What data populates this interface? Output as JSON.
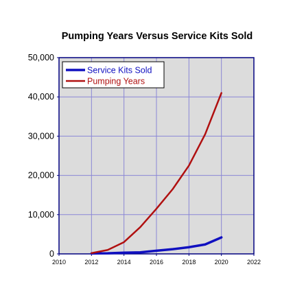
{
  "chart_data": {
    "type": "line",
    "title": "Pumping Years Versus Service Kits Sold",
    "xlabel": "",
    "ylabel": "",
    "xlim": [
      2010,
      2022
    ],
    "ylim": [
      0,
      50000
    ],
    "x_ticks": [
      "2010",
      "2012",
      "2014",
      "2016",
      "2018",
      "2020",
      "2022"
    ],
    "y_ticks": [
      "0",
      "10,000",
      "20,000",
      "30,000",
      "40,000",
      "50,000"
    ],
    "grid": true,
    "legend_position": "top-left",
    "plot_background": "#dcdcdc",
    "grid_color": "#8a86d6",
    "x": [
      2012,
      2013,
      2014,
      2015,
      2016,
      2017,
      2018,
      2019,
      2020
    ],
    "series": [
      {
        "name": "Service Kits Sold",
        "color": "#1010c0",
        "values": [
          100,
          150,
          300,
          400,
          800,
          1200,
          1700,
          2400,
          4200
        ]
      },
      {
        "name": "Pumping Years",
        "color": "#b01010",
        "values": [
          200,
          1000,
          3000,
          6800,
          11500,
          16500,
          22500,
          30500,
          41000
        ]
      }
    ]
  }
}
